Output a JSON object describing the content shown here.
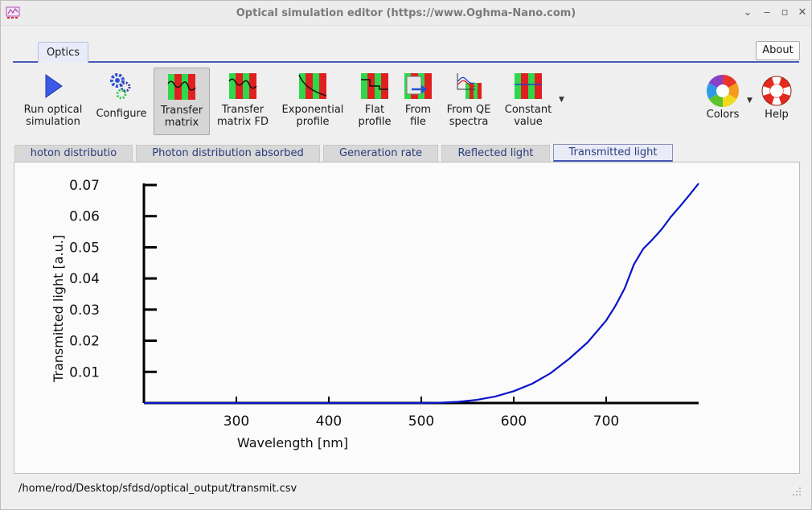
{
  "window": {
    "title": "Optical simulation editor (https://www.Oghma-Nano.com)"
  },
  "ribbon": {
    "tab_label": "Optics",
    "about_label": "About"
  },
  "toolbar": {
    "run": "Run optical\nsimulation",
    "configure": "Configure",
    "transfer_matrix": "Transfer\nmatrix",
    "transfer_matrix_fd": "Transfer\nmatrix FD",
    "exponential_profile": "Exponential\nprofile",
    "flat_profile": "Flat\nprofile",
    "from_file": "From\nfile",
    "from_qe": "From QE\nspectra",
    "constant_value": "Constant\nvalue",
    "colors": "Colors",
    "help": "Help"
  },
  "plot_tabs": [
    {
      "label": "hoton distributio"
    },
    {
      "label": "Photon distribution absorbed"
    },
    {
      "label": "Generation rate"
    },
    {
      "label": "Reflected light"
    },
    {
      "label": "Transmitted light"
    }
  ],
  "status": {
    "path": "/home/rod/Desktop/sfdsd/optical_output/transmit.csv"
  },
  "chart_data": {
    "type": "line",
    "title": "",
    "xlabel": "Wavelength [nm]",
    "ylabel": "Transmitted light [a.u.]",
    "xlim": [
      200,
      800
    ],
    "ylim": [
      0,
      0.07
    ],
    "xticks": [
      300,
      400,
      500,
      600,
      700
    ],
    "yticks": [
      0.01,
      0.02,
      0.03,
      0.04,
      0.05,
      0.06,
      0.07
    ],
    "xtick_labels": [
      "300",
      "400",
      "500",
      "600",
      "700"
    ],
    "ytick_labels": [
      "0.01",
      "0.02",
      "0.03",
      "0.04",
      "0.05",
      "0.06",
      "0.07"
    ],
    "grid": false,
    "line_color": "#0a14c8",
    "series": [
      {
        "x": [
          200,
          300,
          400,
          500,
          520,
          540,
          560,
          580,
          600,
          620,
          640,
          660,
          680,
          700,
          710,
          720,
          730,
          740,
          750,
          760,
          770,
          780,
          790,
          800
        ],
        "y": [
          0,
          0,
          0,
          0,
          0.0001,
          0.0004,
          0.001,
          0.0021,
          0.0038,
          0.0062,
          0.0096,
          0.0142,
          0.0195,
          0.0265,
          0.0312,
          0.0368,
          0.0445,
          0.0495,
          0.0525,
          0.0558,
          0.0598,
          0.0632,
          0.0668,
          0.0705
        ]
      }
    ]
  }
}
